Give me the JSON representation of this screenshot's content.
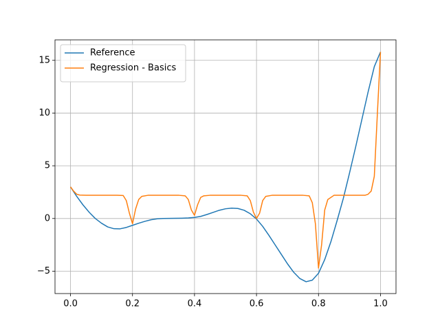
{
  "chart_data": {
    "type": "line",
    "xlim": [
      -0.05,
      1.05
    ],
    "ylim": [
      -7.12,
      16.94
    ],
    "xticks": [
      {
        "value": 0,
        "label": "0.0"
      },
      0.2,
      0.4,
      0.6,
      0.8,
      {
        "value": 1,
        "label": "1.0"
      }
    ],
    "yticks": [
      {
        "value": -5,
        "label": "−5"
      },
      0,
      5,
      10,
      15
    ],
    "grid": true,
    "legend": "upper left",
    "series": [
      {
        "name": "Reference",
        "color": "#1f77b4",
        "x": [
          0,
          0.02,
          0.04,
          0.06,
          0.08,
          0.1,
          0.12,
          0.14,
          0.16,
          0.18,
          0.2,
          0.22,
          0.24,
          0.26,
          0.28,
          0.3,
          0.32,
          0.34,
          0.36,
          0.38,
          0.4,
          0.42,
          0.44,
          0.46,
          0.48,
          0.5,
          0.52,
          0.54,
          0.56,
          0.58,
          0.6,
          0.62,
          0.64,
          0.66,
          0.68,
          0.7,
          0.72,
          0.74,
          0.76,
          0.78,
          0.8,
          0.82,
          0.84,
          0.86,
          0.88,
          0.9,
          0.92,
          0.94,
          0.96,
          0.98,
          1.0
        ],
        "values": [
          3.0,
          2.1,
          1.3,
          0.6,
          0.0,
          -0.45,
          -0.8,
          -0.97,
          -0.98,
          -0.85,
          -0.65,
          -0.45,
          -0.27,
          -0.12,
          -0.03,
          0.0,
          0.01,
          0.02,
          0.03,
          0.05,
          0.1,
          0.2,
          0.38,
          0.58,
          0.78,
          0.92,
          0.98,
          0.95,
          0.78,
          0.45,
          -0.05,
          -0.75,
          -1.6,
          -2.5,
          -3.4,
          -4.3,
          -5.1,
          -5.7,
          -6.0,
          -5.85,
          -5.2,
          -3.9,
          -2.2,
          -0.2,
          1.9,
          4.3,
          6.8,
          9.4,
          12.0,
          14.4,
          15.8
        ]
      },
      {
        "name": "Regression - Basics",
        "color": "#ff7f0e",
        "x": [
          0,
          0.01,
          0.02,
          0.03,
          0.05,
          0.15,
          0.17,
          0.18,
          0.19,
          0.2,
          0.21,
          0.22,
          0.23,
          0.25,
          0.35,
          0.37,
          0.38,
          0.39,
          0.4,
          0.41,
          0.42,
          0.43,
          0.45,
          0.55,
          0.57,
          0.58,
          0.59,
          0.6,
          0.61,
          0.62,
          0.63,
          0.65,
          0.75,
          0.77,
          0.78,
          0.79,
          0.8,
          0.81,
          0.82,
          0.83,
          0.85,
          0.95,
          0.96,
          0.97,
          0.98,
          0.99,
          1.0
        ],
        "values": [
          3.0,
          2.6,
          2.3,
          2.22,
          2.2,
          2.2,
          2.18,
          1.7,
          0.5,
          -0.5,
          0.9,
          1.8,
          2.1,
          2.2,
          2.2,
          2.15,
          1.8,
          0.8,
          0.3,
          1.3,
          2.0,
          2.15,
          2.2,
          2.2,
          2.15,
          1.7,
          0.6,
          0.0,
          0.5,
          1.7,
          2.1,
          2.2,
          2.2,
          2.15,
          1.5,
          -0.5,
          -4.7,
          -2.5,
          0.8,
          1.8,
          2.2,
          2.2,
          2.3,
          2.6,
          4.0,
          10,
          15.8
        ]
      }
    ]
  }
}
